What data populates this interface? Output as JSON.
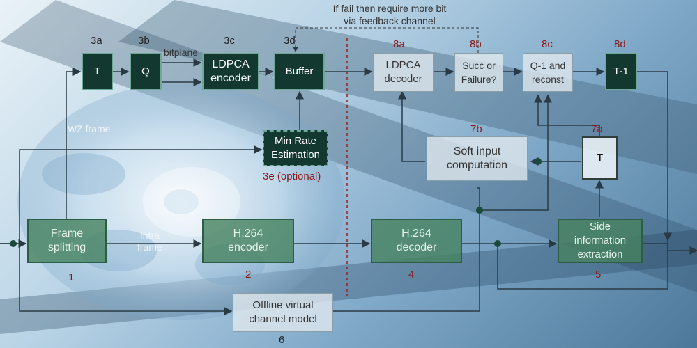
{
  "feedback_note": {
    "line1": "If fail then require more bit",
    "line2": "via feedback channel"
  },
  "blocks": {
    "T": {
      "id": "3a",
      "label": "T"
    },
    "Q": {
      "id": "3b",
      "label": "Q"
    },
    "ldpca_encoder": {
      "id": "3c",
      "label": "LDPCA\nencoder"
    },
    "buffer": {
      "id": "3d",
      "label": "Buffer"
    },
    "min_rate": {
      "id": "3e (optional)",
      "label": "Min Rate\nEstimation"
    },
    "ldpca_decoder": {
      "id": "8a",
      "label": "LDPCA\ndecoder"
    },
    "succ_failure": {
      "id": "8b",
      "label": "Succ or\nFailure?"
    },
    "q_inv": {
      "id": "8c",
      "label": "Q-1 and\nreconst"
    },
    "t_inv": {
      "id": "8d",
      "label": "T-1"
    },
    "soft_input": {
      "id": "7b",
      "label": "Soft input\ncomputation"
    },
    "t7a": {
      "id": "7a",
      "label": "T"
    },
    "frame_split": {
      "id": "1",
      "label": "Frame\nsplitting"
    },
    "h264_enc": {
      "id": "2",
      "label": "H.264\nencoder"
    },
    "h264_dec": {
      "id": "4",
      "label": "H.264\ndecoder"
    },
    "side_info": {
      "id": "5",
      "label": "Side\ninformation\nextraction"
    },
    "offline": {
      "id": "6",
      "label": "Offline virtual\nchannel model"
    }
  },
  "labels": {
    "bitplane": "bitplane",
    "wz_frame": "WZ frame",
    "intra": "Intra\nframe"
  },
  "colors": {
    "accent_red": "#8a1818",
    "dark_block": "#12382f",
    "green_block": "#46825f"
  }
}
